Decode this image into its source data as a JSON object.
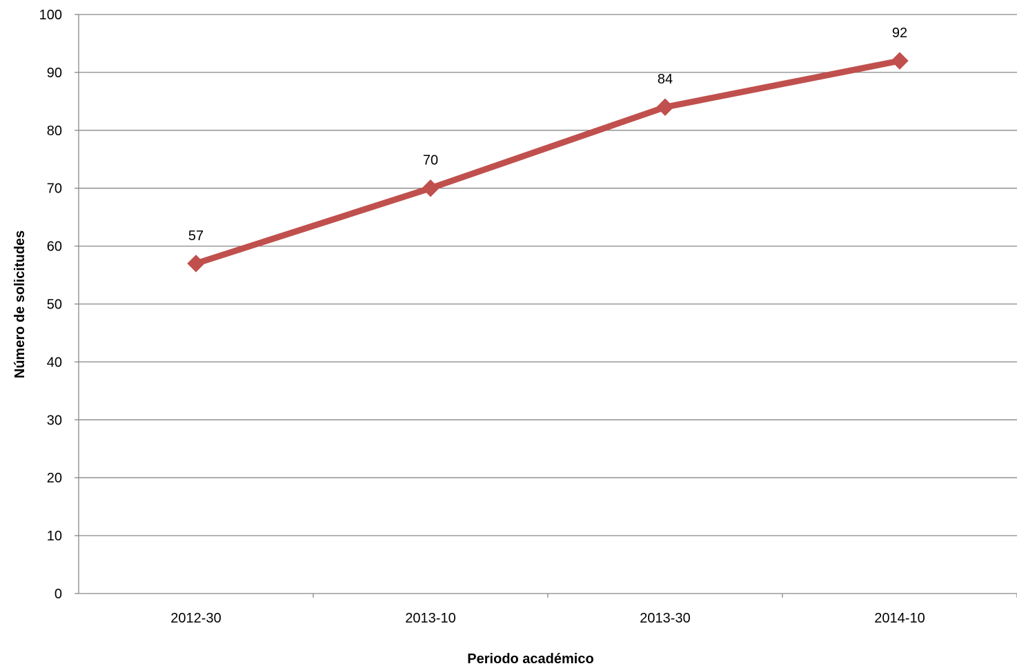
{
  "chart_data": {
    "type": "line",
    "title": "",
    "xlabel": "Periodo académico",
    "ylabel": "Número de solicitudes",
    "categories": [
      "2012-30",
      "2013-10",
      "2013-30",
      "2014-10"
    ],
    "series": [
      {
        "values": [
          57,
          70,
          84,
          92
        ],
        "color": "#C0504D",
        "marker": "diamond"
      }
    ],
    "data_labels": [
      "57",
      "70",
      "84",
      "92"
    ],
    "ylim": [
      0,
      100
    ],
    "yticks": [
      0,
      10,
      20,
      30,
      40,
      50,
      60,
      70,
      80,
      90,
      100
    ],
    "ytick_labels": [
      "0",
      "10",
      "20",
      "30",
      "40",
      "50",
      "60",
      "70",
      "80",
      "90",
      "100"
    ],
    "grid": true,
    "legend": "none",
    "colors": {
      "line": "#C0504D",
      "gridline": "#888888",
      "axis": "#888888"
    }
  }
}
